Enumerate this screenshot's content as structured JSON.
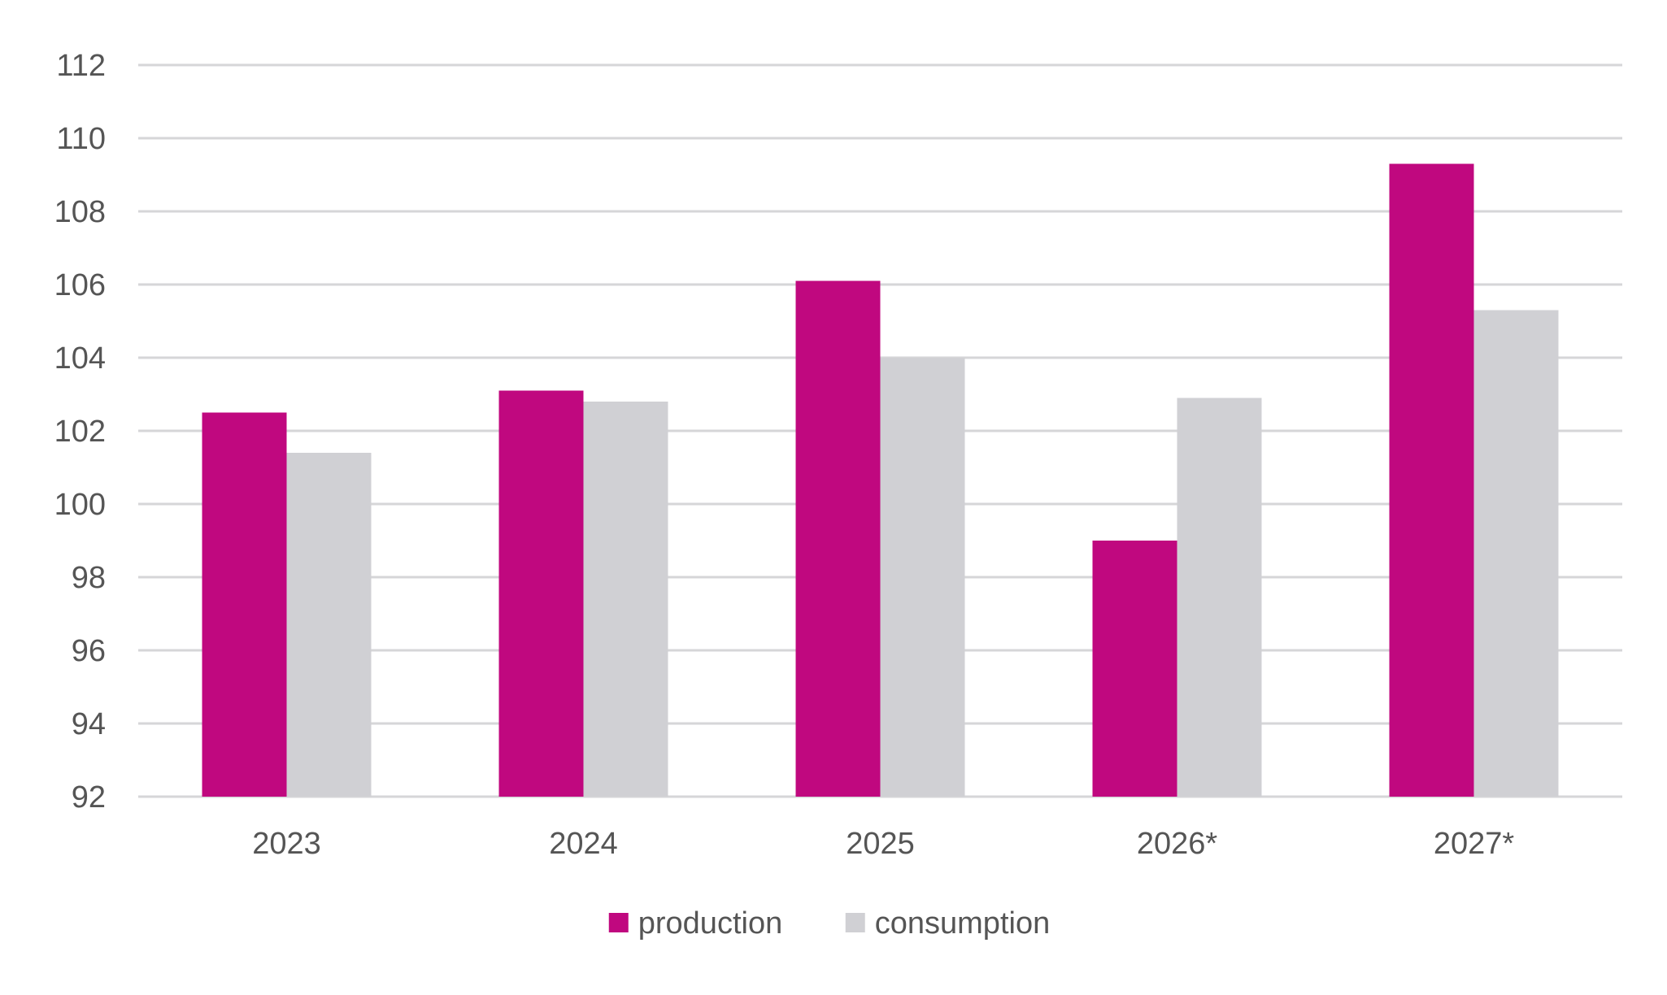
{
  "chart_data": {
    "type": "bar",
    "categories": [
      "2023",
      "2024",
      "2025",
      "2026*",
      "2027*"
    ],
    "series": [
      {
        "name": "production",
        "color": "#c0087f",
        "values": [
          102.5,
          103.1,
          106.1,
          99.0,
          109.3
        ]
      },
      {
        "name": "consumption",
        "color": "#d0d0d4",
        "values": [
          101.4,
          102.8,
          104.0,
          102.9,
          105.3
        ]
      }
    ],
    "yticks": [
      "92",
      "94",
      "96",
      "98",
      "100",
      "102",
      "104",
      "106",
      "108",
      "110",
      "112"
    ],
    "ylim": [
      92,
      112
    ],
    "grid": true,
    "legend_position": "bottom-center",
    "title": "",
    "xlabel": "",
    "ylabel": ""
  }
}
